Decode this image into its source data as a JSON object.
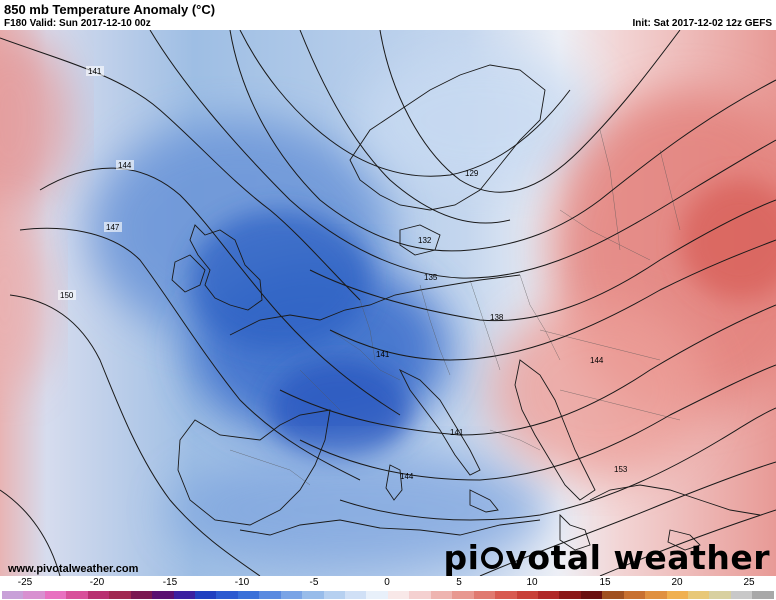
{
  "header": {
    "title": "850 mb Temperature Anomaly (°C)",
    "valid": "F180 Valid: Sun 2017-12-10 00z",
    "init": "Init: Sat 2017-12-02 12z GEFS"
  },
  "map": {
    "contour_labels": [
      "141",
      "144",
      "147",
      "150",
      "129",
      "132",
      "135",
      "138",
      "141",
      "141",
      "144",
      "144",
      "153"
    ]
  },
  "footer": {
    "website": "www.pivotalweather.com",
    "brand_left": "pi",
    "brand_right": "votal weather"
  },
  "colorbar": {
    "ticks": [
      "-25",
      "-20",
      "-15",
      "-10",
      "-5",
      "0",
      "5",
      "10",
      "15",
      "20",
      "25"
    ],
    "colors": [
      "#c8a0d8",
      "#d890d0",
      "#e870c0",
      "#d8509a",
      "#b83070",
      "#a02850",
      "#7a1850",
      "#5a1070",
      "#3a20a0",
      "#2040c0",
      "#2c5ad0",
      "#3a70d8",
      "#5a8ae0",
      "#7aa4e6",
      "#98bcea",
      "#b6d0f0",
      "#d0e0f6",
      "#e8f0fa",
      "#f8e8e8",
      "#f4d0d0",
      "#eeb4b0",
      "#e89890",
      "#e07a70",
      "#d85a50",
      "#c84038",
      "#b02828",
      "#8a1818",
      "#6a1010",
      "#a05020",
      "#c87030",
      "#e09040",
      "#f0b050",
      "#e8c878",
      "#d8d0a0",
      "#c8c8c8",
      "#a8a8a8"
    ]
  }
}
